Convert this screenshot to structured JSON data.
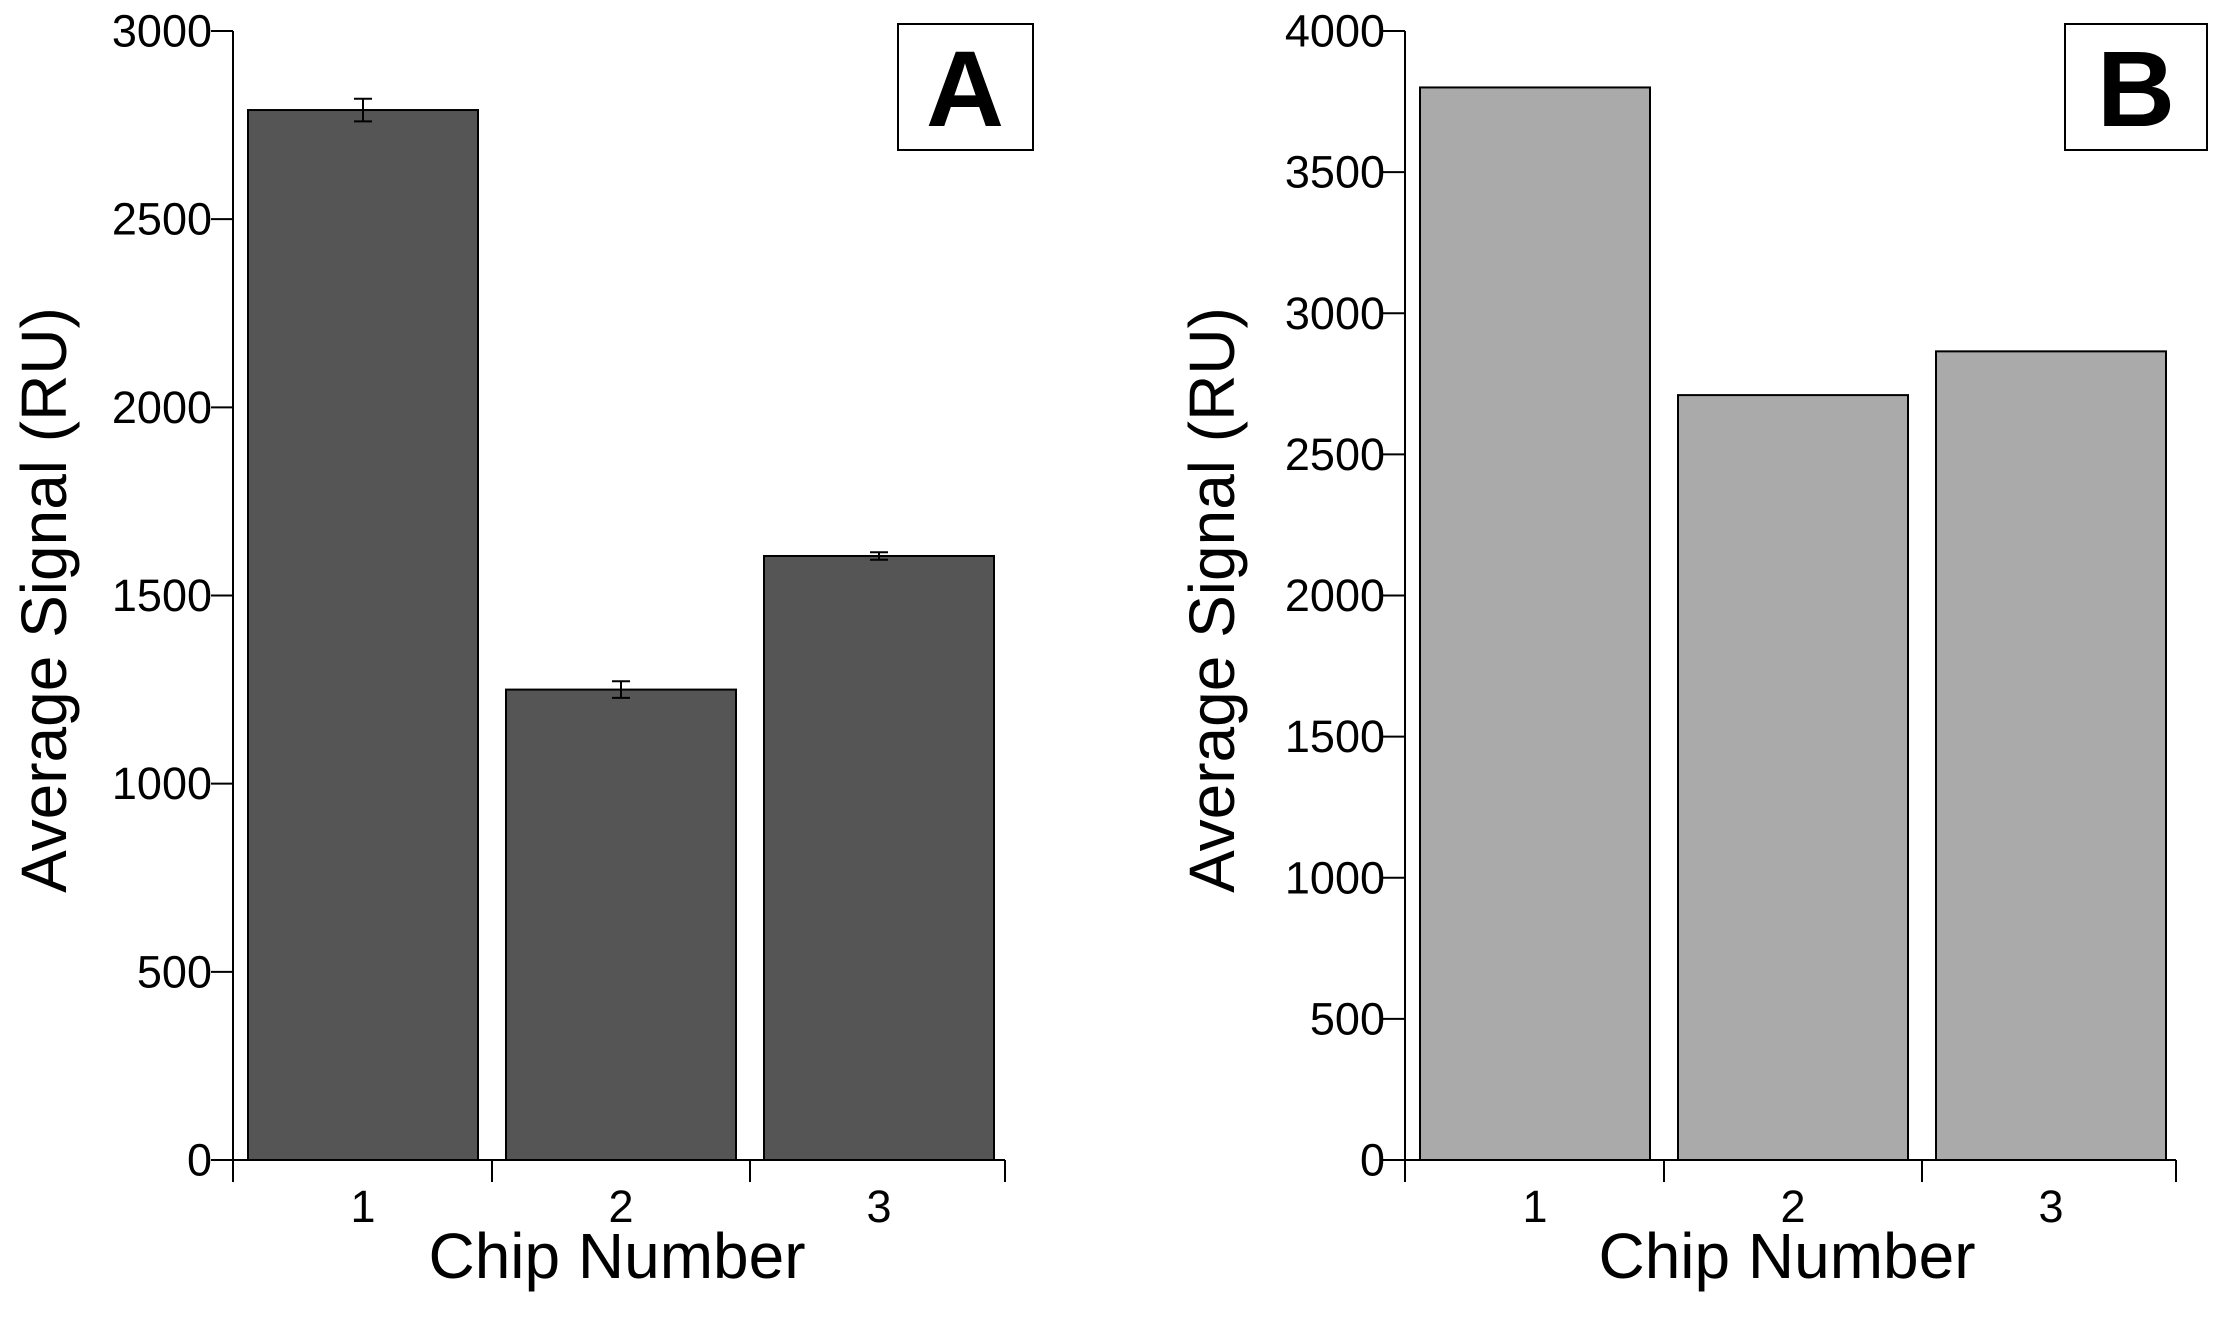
{
  "chart_data": [
    {
      "type": "bar",
      "panel_label": "A",
      "categories": [
        "1",
        "2",
        "3"
      ],
      "values": [
        2790,
        1250,
        1605
      ],
      "error": [
        30,
        22,
        10
      ],
      "xlabel": "Chip Number",
      "ylabel": "Average Signal (RU)",
      "ylim": [
        0,
        3000
      ],
      "yticks": [
        "0",
        "500",
        "1000",
        "1500",
        "2000",
        "2500",
        "3000"
      ],
      "bar_color": "#555555",
      "grid": false
    },
    {
      "type": "bar",
      "panel_label": "B",
      "categories": [
        "1",
        "2",
        "3"
      ],
      "values": [
        3800,
        2710,
        2865
      ],
      "xlabel": "Chip Number",
      "ylabel": "Average Signal (RU)",
      "ylim": [
        0,
        4000
      ],
      "yticks": [
        "0",
        "500",
        "1000",
        "1500",
        "2000",
        "2500",
        "3000",
        "3500",
        "4000"
      ],
      "bar_color": "#aaaaaa",
      "grid": false
    }
  ]
}
